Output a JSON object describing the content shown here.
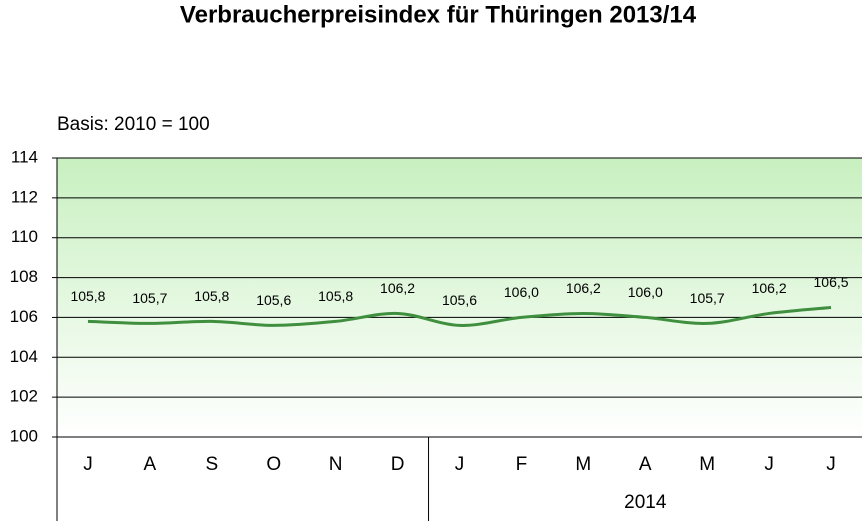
{
  "chart_data": {
    "type": "line",
    "title": "Verbraucherpreisindex für Thüringen 2013/14",
    "subtitle": "Basis: 2010 = 100",
    "categories": [
      "J",
      "A",
      "S",
      "O",
      "N",
      "D",
      "J",
      "F",
      "M",
      "A",
      "M",
      "J",
      "J"
    ],
    "category_groups": [
      {
        "label": null,
        "count": 6
      },
      {
        "label": "2014",
        "count": 7
      }
    ],
    "series": [
      {
        "name": null,
        "color": "#3f8f3f",
        "values": [
          105.8,
          105.7,
          105.8,
          105.6,
          105.8,
          106.2,
          105.6,
          106.0,
          106.2,
          106.0,
          105.7,
          106.2,
          106.5
        ],
        "value_labels": [
          "105,8",
          "105,7",
          "105,8",
          "105,6",
          "105,8",
          "106,2",
          "105,6",
          "106,0",
          "106,2",
          "106,0",
          "105,7",
          "106,2",
          "106,5"
        ]
      }
    ],
    "ylim": [
      100,
      114
    ],
    "yticks": [
      100,
      102,
      104,
      106,
      108,
      110,
      112,
      114
    ],
    "grid": true
  }
}
